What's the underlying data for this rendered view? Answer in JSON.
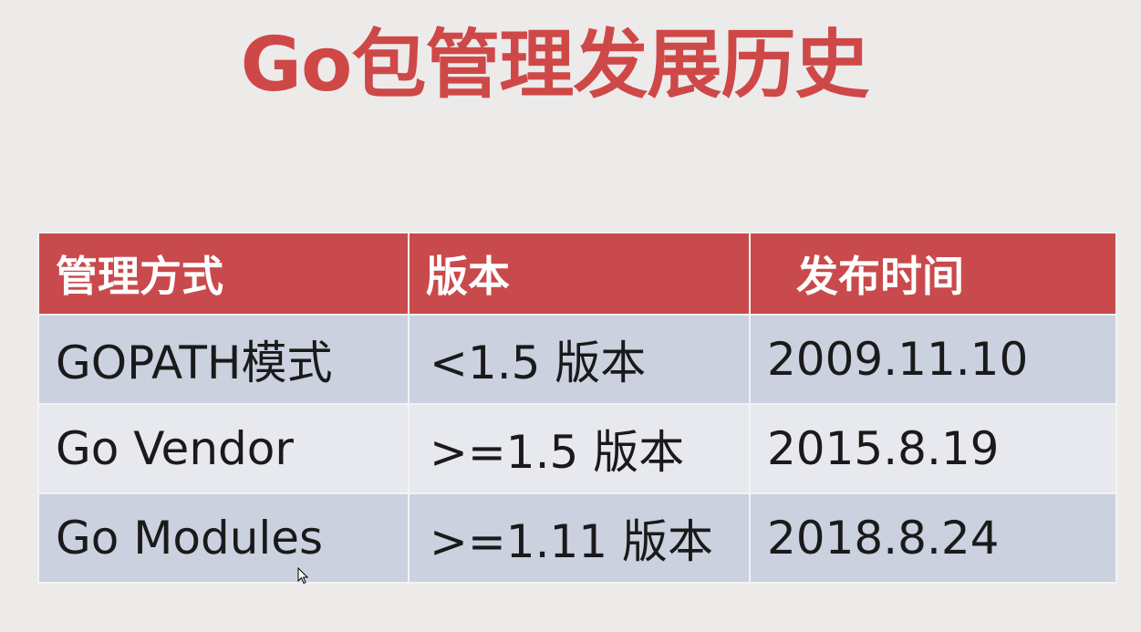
{
  "title": "Go包管理发展历史",
  "table": {
    "headers": [
      "管理方式",
      "版本",
      "发布时间"
    ],
    "rows": [
      [
        "GOPATH模式",
        "<1.5 版本",
        "2009.11.10"
      ],
      [
        "Go Vendor",
        ">=1.5 版本",
        "2015.8.19"
      ],
      [
        "Go Modules",
        ">=1.11 版本",
        "2018.8.24"
      ]
    ]
  },
  "colors": {
    "title": "#cf4848",
    "header_bg": "#c94a4c",
    "row_dark": "#cbd1df",
    "row_light": "#e7e9ee"
  },
  "cursor_icon": "mouse-pointer-icon"
}
